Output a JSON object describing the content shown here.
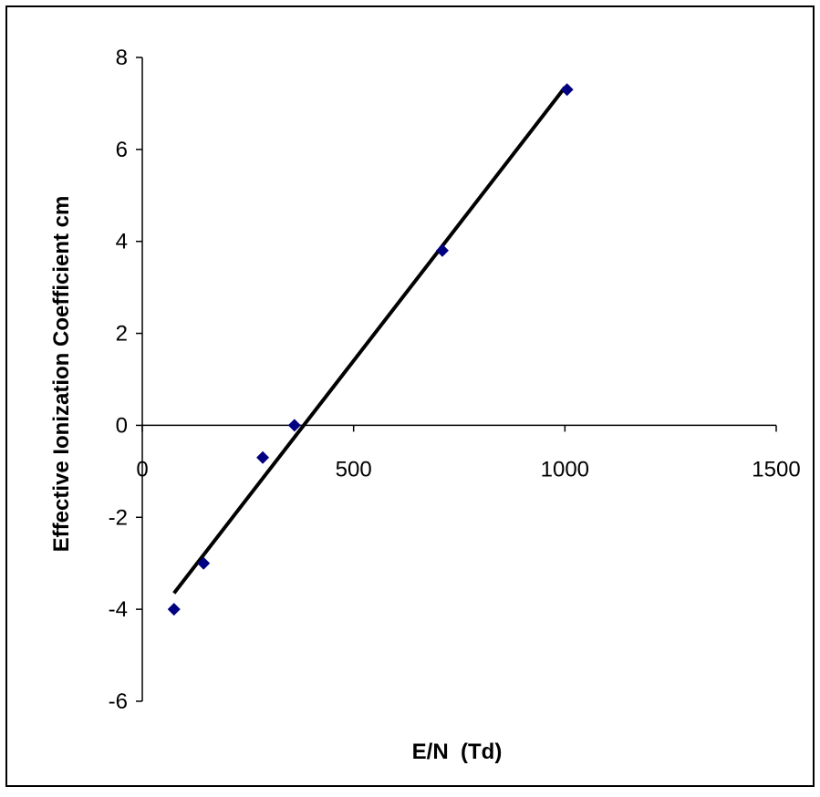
{
  "chart_data": {
    "type": "scatter",
    "title": "",
    "xlabel": "E/N  (Td)",
    "ylabel": "Effective Ionization Coefficient cm",
    "xlim": [
      0,
      1500
    ],
    "ylim": [
      -6,
      8
    ],
    "x_ticks": [
      0,
      500,
      1000,
      1500
    ],
    "y_ticks": [
      -6,
      -4,
      -2,
      0,
      2,
      4,
      6,
      8
    ],
    "x_tick_labels": [
      "0",
      "500",
      "1000",
      "1500"
    ],
    "y_tick_labels": [
      "-6",
      "-4",
      "-2",
      "0",
      "2",
      "4",
      "6",
      "8"
    ],
    "grid": false,
    "legend": "none",
    "series": [
      {
        "marker": "diamond",
        "color": "#000080",
        "points": [
          {
            "x": 75,
            "y": -4.0
          },
          {
            "x": 145,
            "y": -3.0
          },
          {
            "x": 285,
            "y": -0.7
          },
          {
            "x": 360,
            "y": 0.0
          },
          {
            "x": 710,
            "y": 3.8
          },
          {
            "x": 1005,
            "y": 7.3
          }
        ]
      }
    ],
    "trendline": {
      "type": "linear",
      "color": "#000000",
      "points": [
        {
          "x": 75,
          "y": -3.65
        },
        {
          "x": 1000,
          "y": 7.35
        }
      ]
    }
  }
}
